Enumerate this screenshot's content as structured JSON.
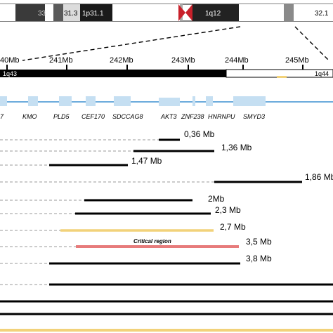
{
  "ideogram": {
    "bands": [
      {
        "label": "33"
      },
      {
        "label": "31.3"
      },
      {
        "label": "1p31.1"
      },
      {
        "label": "1q12"
      },
      {
        "label": "32.1"
      }
    ]
  },
  "ruler": {
    "ticks": [
      "40Mb",
      "241Mb",
      "242Mb",
      "243Mb",
      "244Mb",
      "245Mb"
    ],
    "band_left": "1q43",
    "band_right": "1q44"
  },
  "genes": [
    "7",
    "KMO",
    "PLD5",
    "CEF170",
    "SDCCAG8",
    "AKT3",
    "ZNF238",
    "HNRNPU",
    "SMYD3"
  ],
  "deletions": [
    {
      "label": "0,36 Mb"
    },
    {
      "label": "1,36 Mb"
    },
    {
      "label": "1,47 Mb"
    },
    {
      "label": "1,86 Mb"
    },
    {
      "label": "2Mb"
    },
    {
      "label": "2,3 Mb"
    },
    {
      "label": "2,7 Mb"
    },
    {
      "label": "Critical region"
    },
    {
      "label": "3,5 Mb"
    },
    {
      "label": "3,8 Mb"
    },
    {
      "label": ""
    },
    {
      "label": ""
    },
    {
      "label": ""
    },
    {
      "label": ""
    }
  ],
  "colors": {
    "deletion": "#000000",
    "yellow_segment": "#f2d27a",
    "critical_region": "#e77b7b",
    "gene_box": "#c5dff2",
    "gene_line": "#3b8fd1",
    "dash": "#9a9a9a",
    "centromere": "#c8202a"
  }
}
